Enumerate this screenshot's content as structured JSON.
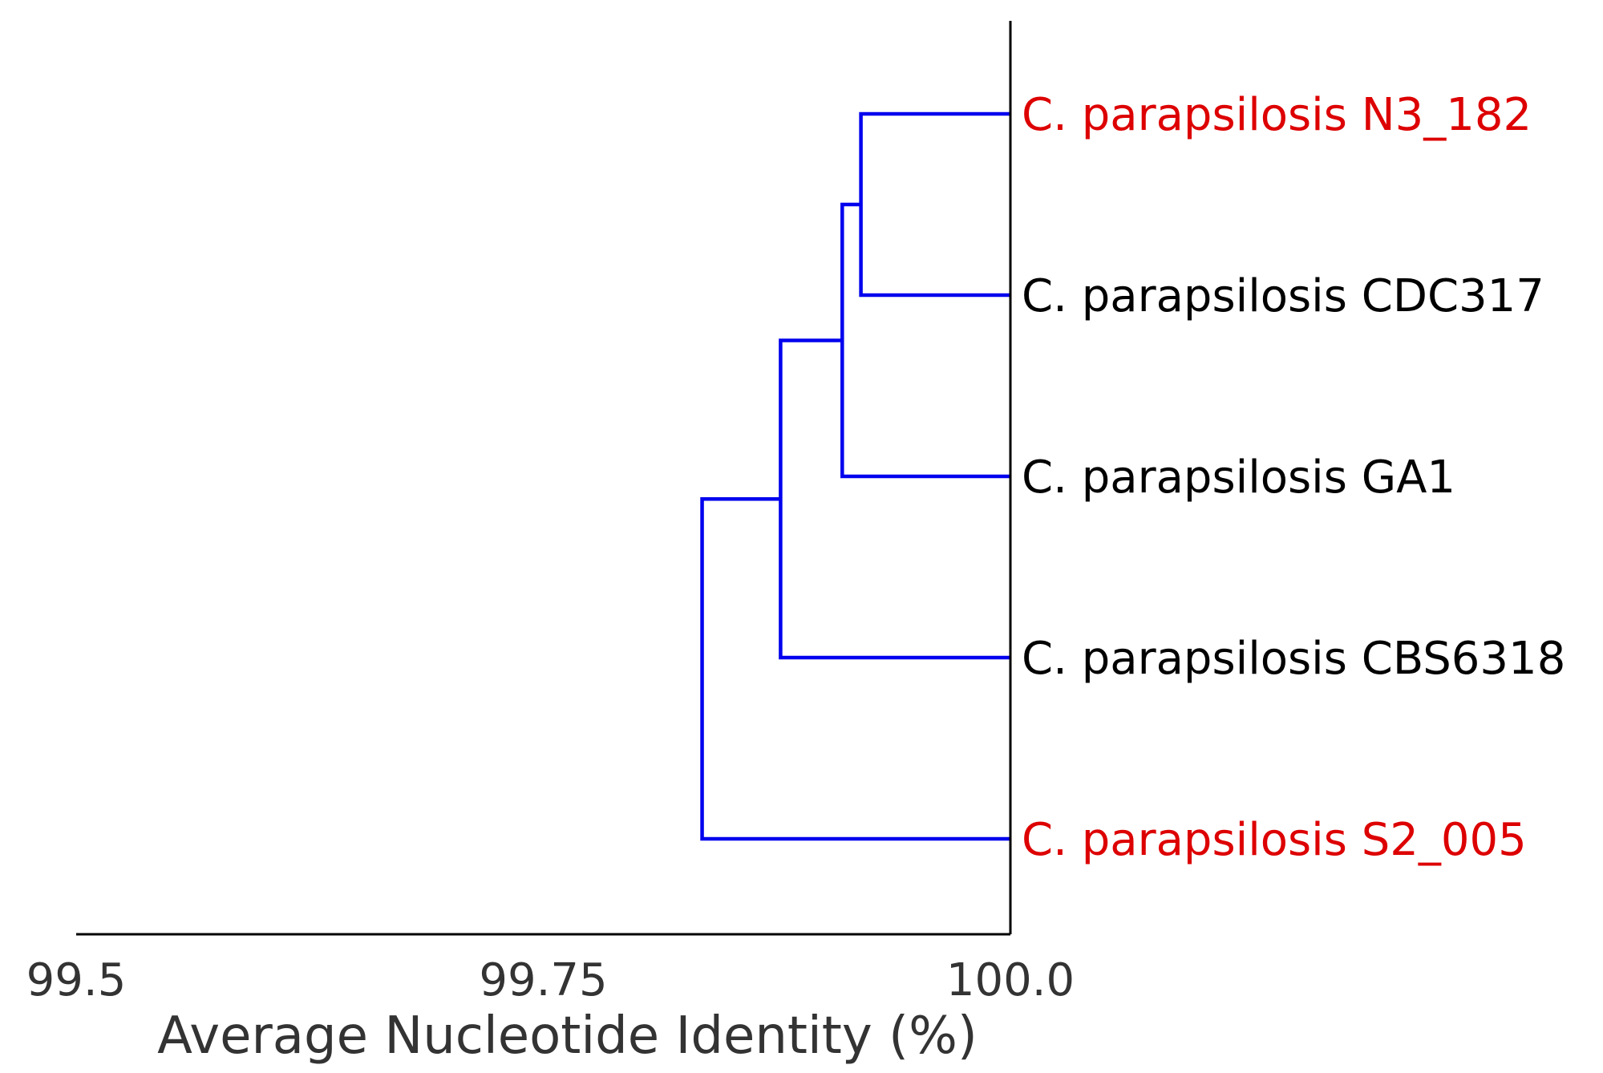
{
  "chart_data": {
    "type": "dendrogram",
    "orientation": "left",
    "xlabel": "Average Nucleotide Identity (%)",
    "xlim": [
      99.5,
      100.0
    ],
    "xticks": [
      {
        "value": 99.5,
        "label": "99.5"
      },
      {
        "value": 99.75,
        "label": "99.75"
      },
      {
        "value": 100.0,
        "label": "100.0"
      }
    ],
    "grid": false,
    "link_color": "#0000ee",
    "highlight_color": "#dd0000",
    "default_label_color": "#000000",
    "leaves": [
      {
        "label": "C. parapsilosis N3_182",
        "highlight": true
      },
      {
        "label": "C. parapsilosis CDC317",
        "highlight": false
      },
      {
        "label": "C. parapsilosis GA1",
        "highlight": false
      },
      {
        "label": "C. parapsilosis CBS6318",
        "highlight": false
      },
      {
        "label": "C. parapsilosis S2_005",
        "highlight": true
      }
    ],
    "merges": [
      {
        "left": "leaf:0",
        "right": "leaf:1",
        "identity": 99.92
      },
      {
        "left": "node:0",
        "right": "leaf:2",
        "identity": 99.91
      },
      {
        "left": "node:1",
        "right": "leaf:3",
        "identity": 99.877
      },
      {
        "left": "node:2",
        "right": "leaf:4",
        "identity": 99.835
      }
    ]
  }
}
